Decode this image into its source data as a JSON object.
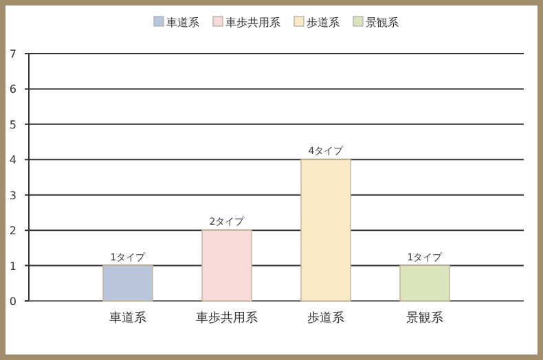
{
  "chart_data": {
    "type": "bar",
    "categories": [
      "車道系",
      "車歩共用系",
      "歩道系",
      "景観系"
    ],
    "series": [
      {
        "name": "車道系",
        "color": "#b8c5da",
        "values": [
          1,
          null,
          null,
          null
        ],
        "value_labels": [
          "1タイプ",
          null,
          null,
          null
        ]
      },
      {
        "name": "車歩共用系",
        "color": "#f8dada",
        "values": [
          null,
          2,
          null,
          null
        ],
        "value_labels": [
          null,
          "2タイプ",
          null,
          null
        ]
      },
      {
        "name": "歩道系",
        "color": "#fbe8c6",
        "values": [
          null,
          null,
          4,
          null
        ],
        "value_labels": [
          null,
          null,
          "4タイプ",
          null
        ]
      },
      {
        "name": "景観系",
        "color": "#d9e4bd",
        "values": [
          null,
          null,
          null,
          1
        ],
        "value_labels": [
          null,
          null,
          null,
          "1タイプ"
        ]
      }
    ],
    "ylim": [
      0,
      7
    ],
    "yticks": [
      0,
      1,
      2,
      3,
      4,
      5,
      6,
      7
    ],
    "grid": "y",
    "legend": "top"
  }
}
